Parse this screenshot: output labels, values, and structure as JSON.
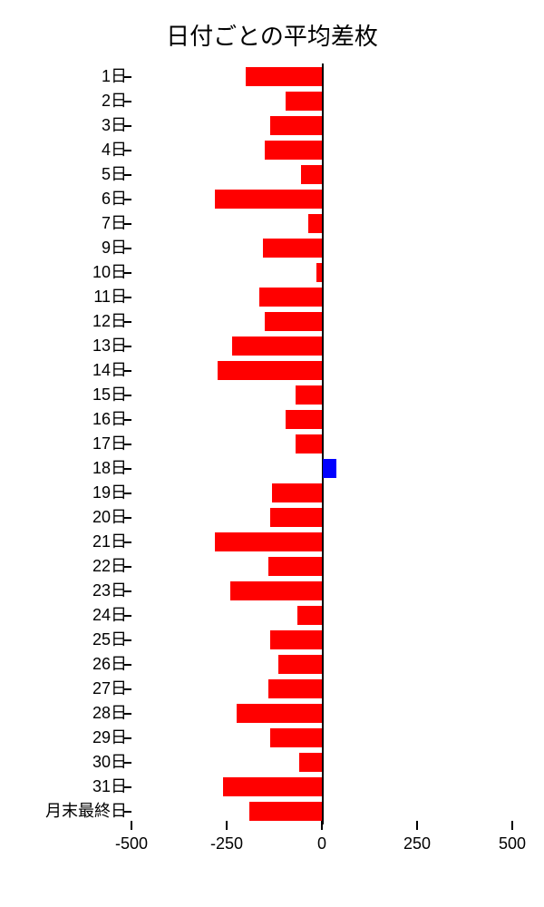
{
  "chart": {
    "type": "bar-horizontal",
    "title": "日付ごとの平均差枚",
    "title_fontsize": 26,
    "background_color": "#ffffff",
    "text_color": "#000000",
    "negative_color": "#ff0000",
    "positive_color": "#0000ff",
    "axis_color": "#000000",
    "xlim": [
      -500,
      500
    ],
    "xticks": [
      -500,
      -250,
      0,
      250,
      500
    ],
    "bar_height_ratio": 0.78,
    "label_fontsize": 18,
    "tick_fontsize": 18,
    "data": [
      {
        "label": "1日",
        "value": -200
      },
      {
        "label": "2日",
        "value": -95
      },
      {
        "label": "3日",
        "value": -135
      },
      {
        "label": "4日",
        "value": -150
      },
      {
        "label": "5日",
        "value": -55
      },
      {
        "label": "6日",
        "value": -280
      },
      {
        "label": "7日",
        "value": -35
      },
      {
        "label": "9日",
        "value": -155
      },
      {
        "label": "10日",
        "value": -15
      },
      {
        "label": "11日",
        "value": -165
      },
      {
        "label": "12日",
        "value": -150
      },
      {
        "label": "13日",
        "value": -235
      },
      {
        "label": "14日",
        "value": -275
      },
      {
        "label": "15日",
        "value": -70
      },
      {
        "label": "16日",
        "value": -95
      },
      {
        "label": "17日",
        "value": -70
      },
      {
        "label": "18日",
        "value": 35
      },
      {
        "label": "19日",
        "value": -130
      },
      {
        "label": "20日",
        "value": -135
      },
      {
        "label": "21日",
        "value": -280
      },
      {
        "label": "22日",
        "value": -140
      },
      {
        "label": "23日",
        "value": -240
      },
      {
        "label": "24日",
        "value": -65
      },
      {
        "label": "25日",
        "value": -135
      },
      {
        "label": "26日",
        "value": -115
      },
      {
        "label": "27日",
        "value": -140
      },
      {
        "label": "28日",
        "value": -225
      },
      {
        "label": "29日",
        "value": -135
      },
      {
        "label": "30日",
        "value": -60
      },
      {
        "label": "31日",
        "value": -260
      },
      {
        "label": "月末最終日",
        "value": -190
      }
    ]
  }
}
